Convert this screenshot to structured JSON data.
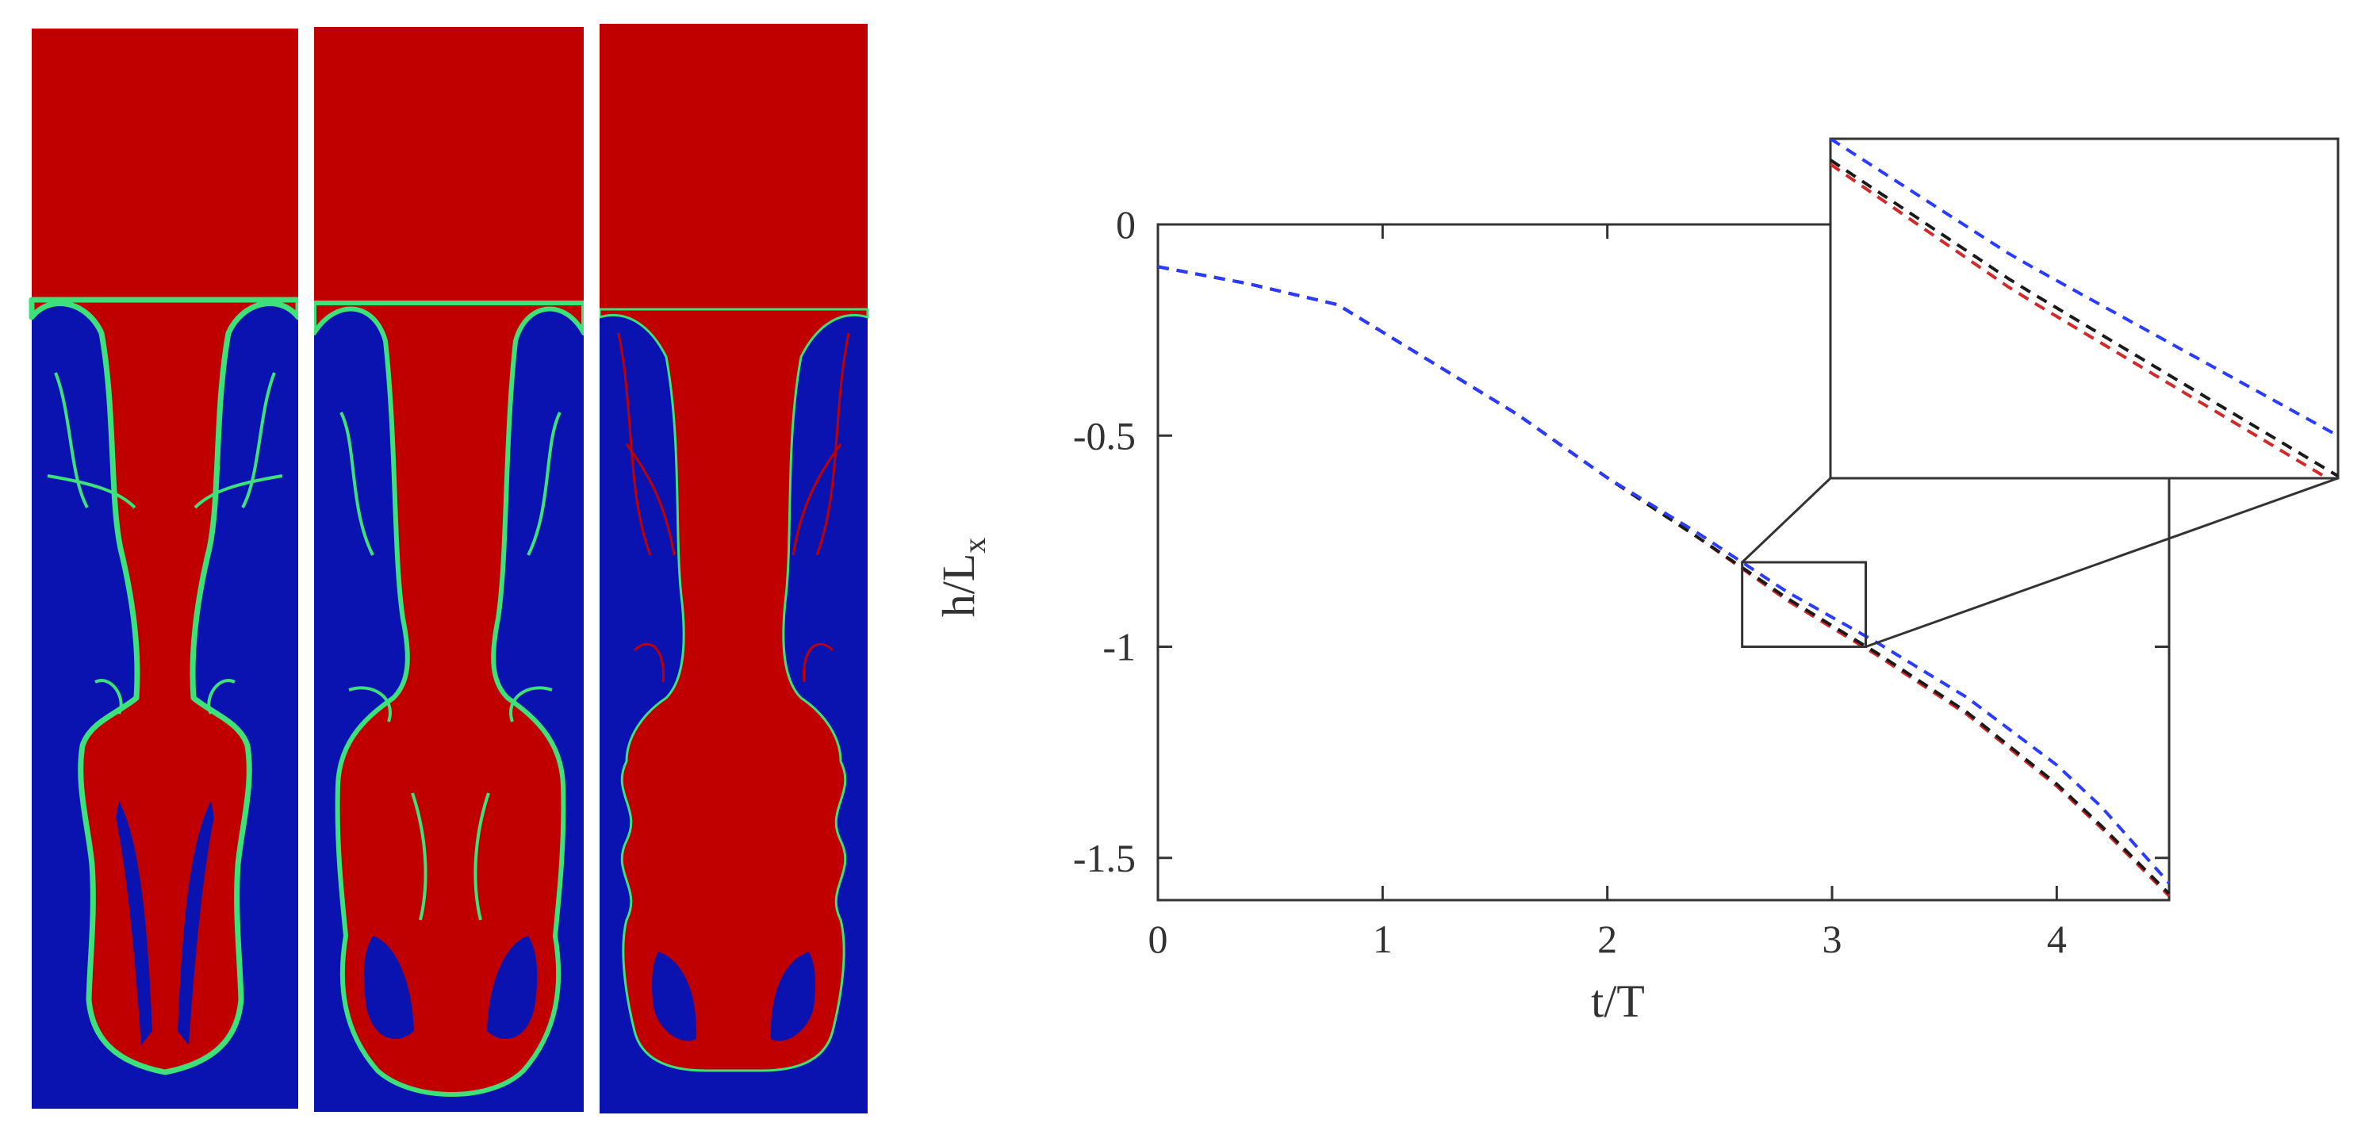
{
  "colors": {
    "heavy_fluid": "#c00000",
    "light_fluid": "#0a12b0",
    "interface": "#3ee07a",
    "series_red": "#d22a2a",
    "series_blue": "#2a3cff",
    "series_black": "#1a1a1a",
    "axis": "#333333"
  },
  "panels": [
    {
      "name": "snapshot-1"
    },
    {
      "name": "snapshot-2"
    },
    {
      "name": "snapshot-3"
    }
  ],
  "chart_data": {
    "type": "line",
    "title": "",
    "xlabel": "t/T",
    "ylabel_main": "h/L",
    "ylabel_sub": "x",
    "xlim": [
      0,
      4.5
    ],
    "ylim": [
      -1.6,
      0
    ],
    "xticks": [
      0,
      1,
      2,
      3,
      4
    ],
    "xtick_labels": [
      "0",
      "1",
      "2",
      "3",
      "4"
    ],
    "yticks": [
      0,
      -0.5,
      -1,
      -1.5
    ],
    "ytick_labels": [
      "0",
      "-0.5",
      "-1",
      "-1.5"
    ],
    "grid": false,
    "legend": "none",
    "series": [
      {
        "color": "#d22a2a",
        "style": "dashed",
        "x": [
          0,
          0.4,
          0.8,
          1.2,
          1.6,
          2.0,
          2.4,
          2.8,
          3.2,
          3.6,
          4.0,
          4.2,
          4.5
        ],
        "y": [
          -0.1,
          -0.14,
          -0.19,
          -0.32,
          -0.45,
          -0.6,
          -0.74,
          -0.89,
          -1.02,
          -1.16,
          -1.33,
          -1.43,
          -1.59
        ]
      },
      {
        "color": "#1a1a1a",
        "style": "dashed",
        "x": [
          0,
          0.4,
          0.8,
          1.2,
          1.6,
          2.0,
          2.4,
          2.8,
          3.2,
          3.6,
          4.0,
          4.2,
          4.5
        ],
        "y": [
          -0.1,
          -0.14,
          -0.19,
          -0.32,
          -0.45,
          -0.6,
          -0.74,
          -0.885,
          -1.015,
          -1.155,
          -1.325,
          -1.425,
          -1.585
        ]
      },
      {
        "color": "#2a3cff",
        "style": "dashed",
        "x": [
          0,
          0.4,
          0.8,
          1.2,
          1.6,
          2.0,
          2.4,
          2.8,
          3.2,
          3.6,
          4.0,
          4.2,
          4.5
        ],
        "y": [
          -0.1,
          -0.14,
          -0.19,
          -0.32,
          -0.45,
          -0.6,
          -0.73,
          -0.87,
          -0.99,
          -1.12,
          -1.28,
          -1.38,
          -1.56
        ]
      }
    ],
    "zoom_box": {
      "xlim": [
        2.6,
        3.15
      ],
      "ylim": [
        -1.0,
        -0.8
      ]
    }
  }
}
